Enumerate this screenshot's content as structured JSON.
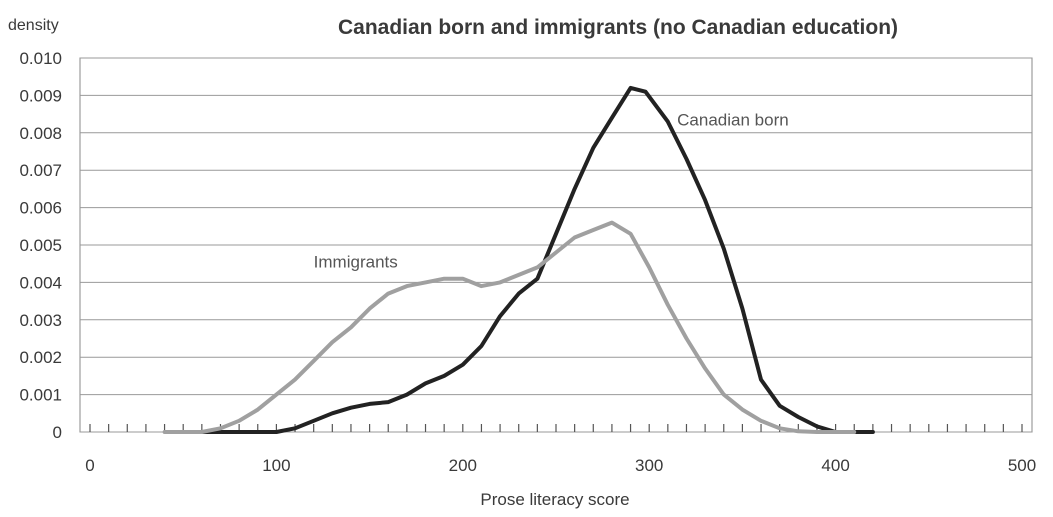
{
  "chart_data": {
    "type": "line",
    "title": "Canadian born and immigrants (no Canadian education)",
    "ylabel": "density",
    "xlabel": "Prose literacy score",
    "xlim": [
      0,
      500
    ],
    "ylim": [
      0,
      0.01
    ],
    "x_ticks": [
      "0",
      "100",
      "200",
      "300",
      "400",
      "500"
    ],
    "y_ticks": [
      "0",
      "0.001",
      "0.002",
      "0.003",
      "0.004",
      "0.005",
      "0.006",
      "0.007",
      "0.008",
      "0.009",
      "0.010"
    ],
    "grid": true,
    "legend": "inline labels",
    "series": [
      {
        "name": "Canadian born",
        "color": "#222222",
        "points": [
          [
            60,
            0.0
          ],
          [
            100,
            0.0
          ],
          [
            110,
            0.0001
          ],
          [
            120,
            0.0003
          ],
          [
            130,
            0.0005
          ],
          [
            140,
            0.00065
          ],
          [
            150,
            0.00075
          ],
          [
            160,
            0.0008
          ],
          [
            170,
            0.001
          ],
          [
            180,
            0.0013
          ],
          [
            190,
            0.0015
          ],
          [
            200,
            0.0018
          ],
          [
            210,
            0.0023
          ],
          [
            220,
            0.0031
          ],
          [
            230,
            0.0037
          ],
          [
            240,
            0.0041
          ],
          [
            250,
            0.0053
          ],
          [
            260,
            0.0065
          ],
          [
            270,
            0.0076
          ],
          [
            280,
            0.0084
          ],
          [
            290,
            0.0092
          ],
          [
            298,
            0.0091
          ],
          [
            310,
            0.0083
          ],
          [
            320,
            0.0073
          ],
          [
            330,
            0.0062
          ],
          [
            340,
            0.0049
          ],
          [
            350,
            0.0033
          ],
          [
            360,
            0.0014
          ],
          [
            370,
            0.0007
          ],
          [
            380,
            0.0004
          ],
          [
            390,
            0.00015
          ],
          [
            400,
            0.0
          ],
          [
            420,
            0.0
          ]
        ]
      },
      {
        "name": "Immigrants",
        "color": "#a0a0a0",
        "points": [
          [
            40,
            0.0
          ],
          [
            60,
            0.0
          ],
          [
            70,
            0.0001
          ],
          [
            80,
            0.0003
          ],
          [
            90,
            0.0006
          ],
          [
            100,
            0.001
          ],
          [
            110,
            0.0014
          ],
          [
            120,
            0.0019
          ],
          [
            130,
            0.0024
          ],
          [
            140,
            0.0028
          ],
          [
            150,
            0.0033
          ],
          [
            160,
            0.0037
          ],
          [
            170,
            0.0039
          ],
          [
            180,
            0.004
          ],
          [
            190,
            0.0041
          ],
          [
            200,
            0.0041
          ],
          [
            210,
            0.0039
          ],
          [
            220,
            0.004
          ],
          [
            230,
            0.0042
          ],
          [
            240,
            0.0044
          ],
          [
            250,
            0.0048
          ],
          [
            260,
            0.0052
          ],
          [
            270,
            0.0054
          ],
          [
            280,
            0.0056
          ],
          [
            290,
            0.0053
          ],
          [
            300,
            0.0044
          ],
          [
            310,
            0.0034
          ],
          [
            320,
            0.0025
          ],
          [
            330,
            0.0017
          ],
          [
            340,
            0.001
          ],
          [
            350,
            0.0006
          ],
          [
            360,
            0.0003
          ],
          [
            370,
            0.0001
          ],
          [
            380,
            2e-05
          ],
          [
            390,
            0.0
          ],
          [
            410,
            0.0
          ]
        ]
      }
    ],
    "annotations": [
      {
        "text": "Canadian born",
        "series": 0
      },
      {
        "text": "Immigrants",
        "series": 1
      }
    ]
  }
}
